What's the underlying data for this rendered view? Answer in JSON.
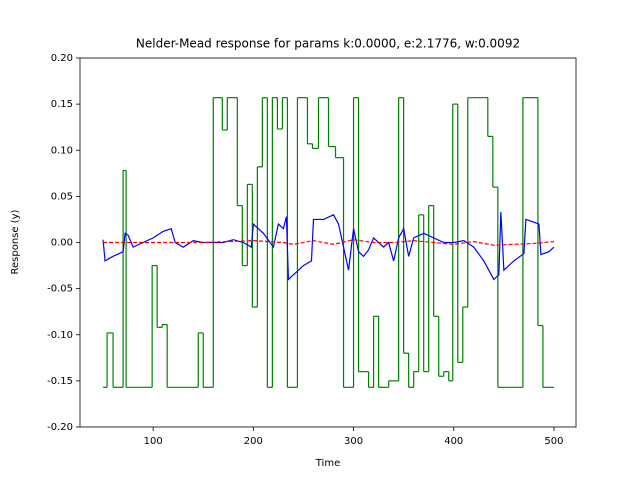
{
  "chart_data": {
    "type": "line",
    "title": "Nelder-Mead response for params k:0.0000, e:2.1776, w:0.0092",
    "x_label": "Time",
    "y_label": "Response (y)",
    "xlim": [
      27,
      522
    ],
    "ylim": [
      -0.2,
      0.2
    ],
    "xticks": [
      100,
      200,
      300,
      400,
      500
    ],
    "yticks": [
      {
        "value": -0.2,
        "label": "-0.20"
      },
      {
        "value": -0.15,
        "label": "-0.15"
      },
      {
        "value": -0.1,
        "label": "-0.10"
      },
      {
        "value": -0.05,
        "label": "-0.05"
      },
      {
        "value": 0,
        "label": "0.00"
      },
      {
        "value": 0.05,
        "label": "0.05"
      },
      {
        "value": 0.1,
        "label": "0.10"
      },
      {
        "value": 0.15,
        "label": "0.15"
      },
      {
        "value": 0.2,
        "label": "0.20"
      }
    ],
    "grid": false,
    "series": [
      {
        "color": "#008000",
        "style": "steps-post",
        "x": [
          50,
          54,
          60,
          70,
          73,
          99,
          104,
          109,
          114,
          145,
          150,
          160,
          169,
          174,
          184,
          189,
          194,
          199,
          204,
          209,
          214,
          219,
          224,
          229,
          234,
          244,
          254,
          259,
          265,
          275,
          282,
          290,
          300,
          305,
          315,
          320,
          325,
          335,
          345,
          350,
          355,
          360,
          365,
          370,
          375,
          380,
          385,
          390,
          395,
          399,
          404,
          409,
          414,
          434,
          439,
          444,
          469,
          484,
          489,
          500
        ],
        "values": [
          -0.157,
          -0.098,
          -0.157,
          0.078,
          -0.157,
          -0.025,
          -0.092,
          -0.089,
          -0.157,
          -0.098,
          -0.157,
          0.157,
          0.122,
          0.157,
          0.04,
          -0.025,
          0.063,
          -0.07,
          0.082,
          0.157,
          -0.157,
          0.157,
          0.123,
          0.157,
          -0.157,
          0.157,
          0.107,
          0.102,
          0.157,
          0.104,
          0.092,
          -0.157,
          0.157,
          -0.14,
          -0.157,
          -0.08,
          -0.157,
          -0.15,
          0.157,
          -0.12,
          -0.157,
          -0.14,
          0.03,
          -0.14,
          0.04,
          -0.08,
          -0.145,
          -0.14,
          -0.15,
          0.15,
          -0.13,
          -0.07,
          0.157,
          0.115,
          0.06,
          -0.157,
          0.157,
          -0.09,
          -0.157,
          -0.157
        ]
      },
      {
        "color": "#0000ff",
        "style": "solid",
        "x": [
          50,
          52,
          60,
          70,
          72,
          75,
          80,
          90,
          100,
          110,
          118,
          122,
          130,
          140,
          150,
          160,
          170,
          180,
          190,
          198,
          200,
          210,
          220,
          225,
          230,
          233,
          235,
          240,
          250,
          258,
          260,
          270,
          280,
          285,
          290,
          295,
          300,
          305,
          310,
          315,
          320,
          330,
          335,
          340,
          345,
          350,
          355,
          360,
          370,
          380,
          390,
          400,
          410,
          420,
          430,
          440,
          445,
          447,
          450,
          460,
          470,
          472,
          480,
          485,
          487,
          495,
          500
        ],
        "values": [
          0.003,
          -0.02,
          -0.015,
          -0.01,
          0.01,
          0.008,
          -0.005,
          0.0,
          0.005,
          0.012,
          0.015,
          0.0,
          -0.005,
          0.002,
          0.0,
          0.0,
          0.0,
          0.003,
          0.0,
          -0.005,
          0.02,
          0.01,
          -0.005,
          0.02,
          0.015,
          0.028,
          -0.04,
          -0.035,
          -0.025,
          -0.02,
          0.025,
          0.025,
          0.03,
          0.02,
          -0.005,
          -0.03,
          0.015,
          -0.01,
          -0.015,
          -0.008,
          0.005,
          -0.005,
          0.0,
          -0.02,
          0.005,
          0.015,
          -0.015,
          0.005,
          0.01,
          0.005,
          0.0,
          0.0,
          0.002,
          -0.005,
          -0.02,
          -0.04,
          -0.035,
          0.033,
          -0.03,
          -0.02,
          -0.012,
          0.025,
          0.022,
          0.02,
          -0.013,
          -0.01,
          -0.005
        ]
      },
      {
        "color": "#ff0000",
        "style": "dashed",
        "x": [
          50,
          100,
          150,
          200,
          230,
          240,
          260,
          280,
          300,
          320,
          340,
          360,
          380,
          400,
          420,
          440,
          460,
          480,
          500
        ],
        "values": [
          0.0,
          0.0,
          0.0,
          0.002,
          0.0,
          -0.002,
          0.002,
          -0.002,
          0.003,
          0.0,
          0.0,
          0.002,
          0.0,
          -0.002,
          0.001,
          -0.003,
          -0.002,
          -0.001,
          0.001
        ]
      }
    ]
  }
}
